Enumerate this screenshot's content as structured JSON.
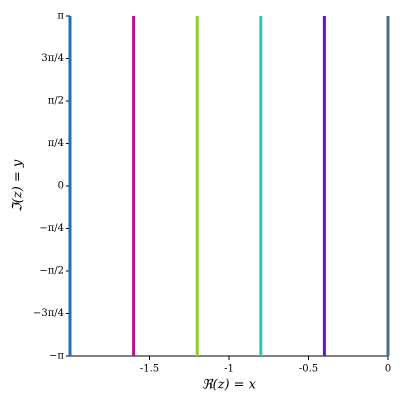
{
  "chart_data": {
    "type": "line",
    "xlabel": "ℜ(z) = x",
    "ylabel": "ℑ(z) = y",
    "series": [
      {
        "color": "#1f6fbf",
        "x": [
          -2,
          -2
        ],
        "values": [
          -3.14159,
          3.14159
        ]
      },
      {
        "color": "#b5128f",
        "x": [
          -1.6,
          -1.6
        ],
        "values": [
          -3.14159,
          3.14159
        ]
      },
      {
        "color": "#8ccf25",
        "x": [
          -1.2,
          -1.2
        ],
        "values": [
          -3.14159,
          3.14159
        ]
      },
      {
        "color": "#26c6c0",
        "x": [
          -0.8,
          -0.8
        ],
        "values": [
          -3.14159,
          3.14159
        ]
      },
      {
        "color": "#6a12c8",
        "x": [
          -0.4,
          -0.4
        ],
        "values": [
          -3.14159,
          3.14159
        ]
      },
      {
        "color": "#4a6f8f",
        "x": [
          0,
          0
        ],
        "values": [
          -3.14159,
          3.14159
        ]
      }
    ],
    "xlim": [
      -2,
      0
    ],
    "xticks": [
      -1.5,
      -1,
      -0.5,
      0
    ],
    "ylim": [
      -3.14159,
      3.14159
    ],
    "yticks": [
      {
        "value": -3.14159,
        "label": "−π"
      },
      {
        "value": -2.35619,
        "label": "−3π/4"
      },
      {
        "value": -1.5708,
        "label": "−π/2"
      },
      {
        "value": -0.785398,
        "label": "−π/4"
      },
      0,
      {
        "value": 0.785398,
        "label": "π/4"
      },
      {
        "value": 1.5708,
        "label": "π/2"
      },
      {
        "value": 2.35619,
        "label": "3π/4"
      },
      {
        "value": 3.14159,
        "label": "π"
      }
    ],
    "grid": false
  }
}
